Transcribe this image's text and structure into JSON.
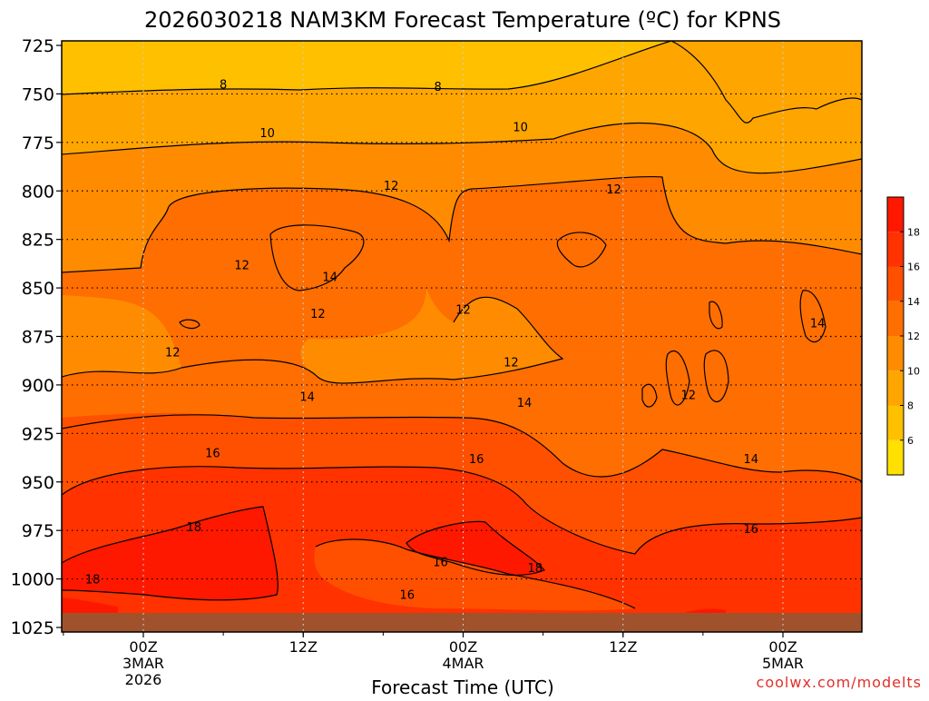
{
  "chart_data": {
    "type": "heatmap",
    "title": "2026030218 NAM3KM Forecast Temperature (ºC) for KPNS",
    "xlabel": "Forecast Time (UTC)",
    "ylabel": "",
    "credit": "coolwx.com/modelts",
    "y_ticks": [
      "725",
      "750",
      "775",
      "800",
      "825",
      "850",
      "875",
      "900",
      "925",
      "950",
      "975",
      "1000",
      "1025"
    ],
    "y_range": [
      725,
      1025
    ],
    "x_ticks": [
      {
        "hour": 6,
        "lines": [
          "00Z",
          "3MAR",
          "2026"
        ]
      },
      {
        "hour": 18,
        "lines": [
          "12Z"
        ]
      },
      {
        "hour": 30,
        "lines": [
          "00Z",
          "4MAR"
        ]
      },
      {
        "hour": 42,
        "lines": [
          "12Z"
        ]
      },
      {
        "hour": 54,
        "lines": [
          "00Z",
          "5MAR"
        ]
      }
    ],
    "x_range": [
      0,
      60
    ],
    "colorbar": {
      "labels": [
        "6",
        "8",
        "10",
        "12",
        "14",
        "16",
        "18"
      ],
      "colors": [
        "#ffe000",
        "#ffc000",
        "#ffa500",
        "#ff8c00",
        "#ff6e00",
        "#ff5000",
        "#ff3200",
        "#ff1800"
      ]
    },
    "contour_labels": [
      {
        "text": "8",
        "hour": 12.0,
        "p": 745
      },
      {
        "text": "8",
        "hour": 28.1,
        "p": 746
      },
      {
        "text": "10",
        "hour": 15.3,
        "p": 770
      },
      {
        "text": "10",
        "hour": 34.3,
        "p": 767
      },
      {
        "text": "12",
        "hour": 24.6,
        "p": 797
      },
      {
        "text": "12",
        "hour": 41.3,
        "p": 799
      },
      {
        "text": "12",
        "hour": 13.4,
        "p": 838
      },
      {
        "text": "14",
        "hour": 20.0,
        "p": 844
      },
      {
        "text": "12",
        "hour": 19.1,
        "p": 863
      },
      {
        "text": "12",
        "hour": 30.0,
        "p": 861
      },
      {
        "text": "12",
        "hour": 8.2,
        "p": 883
      },
      {
        "text": "12",
        "hour": 33.6,
        "p": 888
      },
      {
        "text": "14",
        "hour": 56.6,
        "p": 868
      },
      {
        "text": "12",
        "hour": 46.9,
        "p": 905
      },
      {
        "text": "14",
        "hour": 18.3,
        "p": 906
      },
      {
        "text": "14",
        "hour": 34.6,
        "p": 909
      },
      {
        "text": "16",
        "hour": 11.2,
        "p": 935
      },
      {
        "text": "16",
        "hour": 31.0,
        "p": 938
      },
      {
        "text": "14",
        "hour": 51.6,
        "p": 938
      },
      {
        "text": "18",
        "hour": 9.8,
        "p": 973
      },
      {
        "text": "16",
        "hour": 51.6,
        "p": 974
      },
      {
        "text": "16",
        "hour": 28.3,
        "p": 991
      },
      {
        "text": "18",
        "hour": 35.4,
        "p": 994
      },
      {
        "text": "18",
        "hour": 2.2,
        "p": 1000
      },
      {
        "text": "16",
        "hour": 25.8,
        "p": 1008
      }
    ]
  }
}
